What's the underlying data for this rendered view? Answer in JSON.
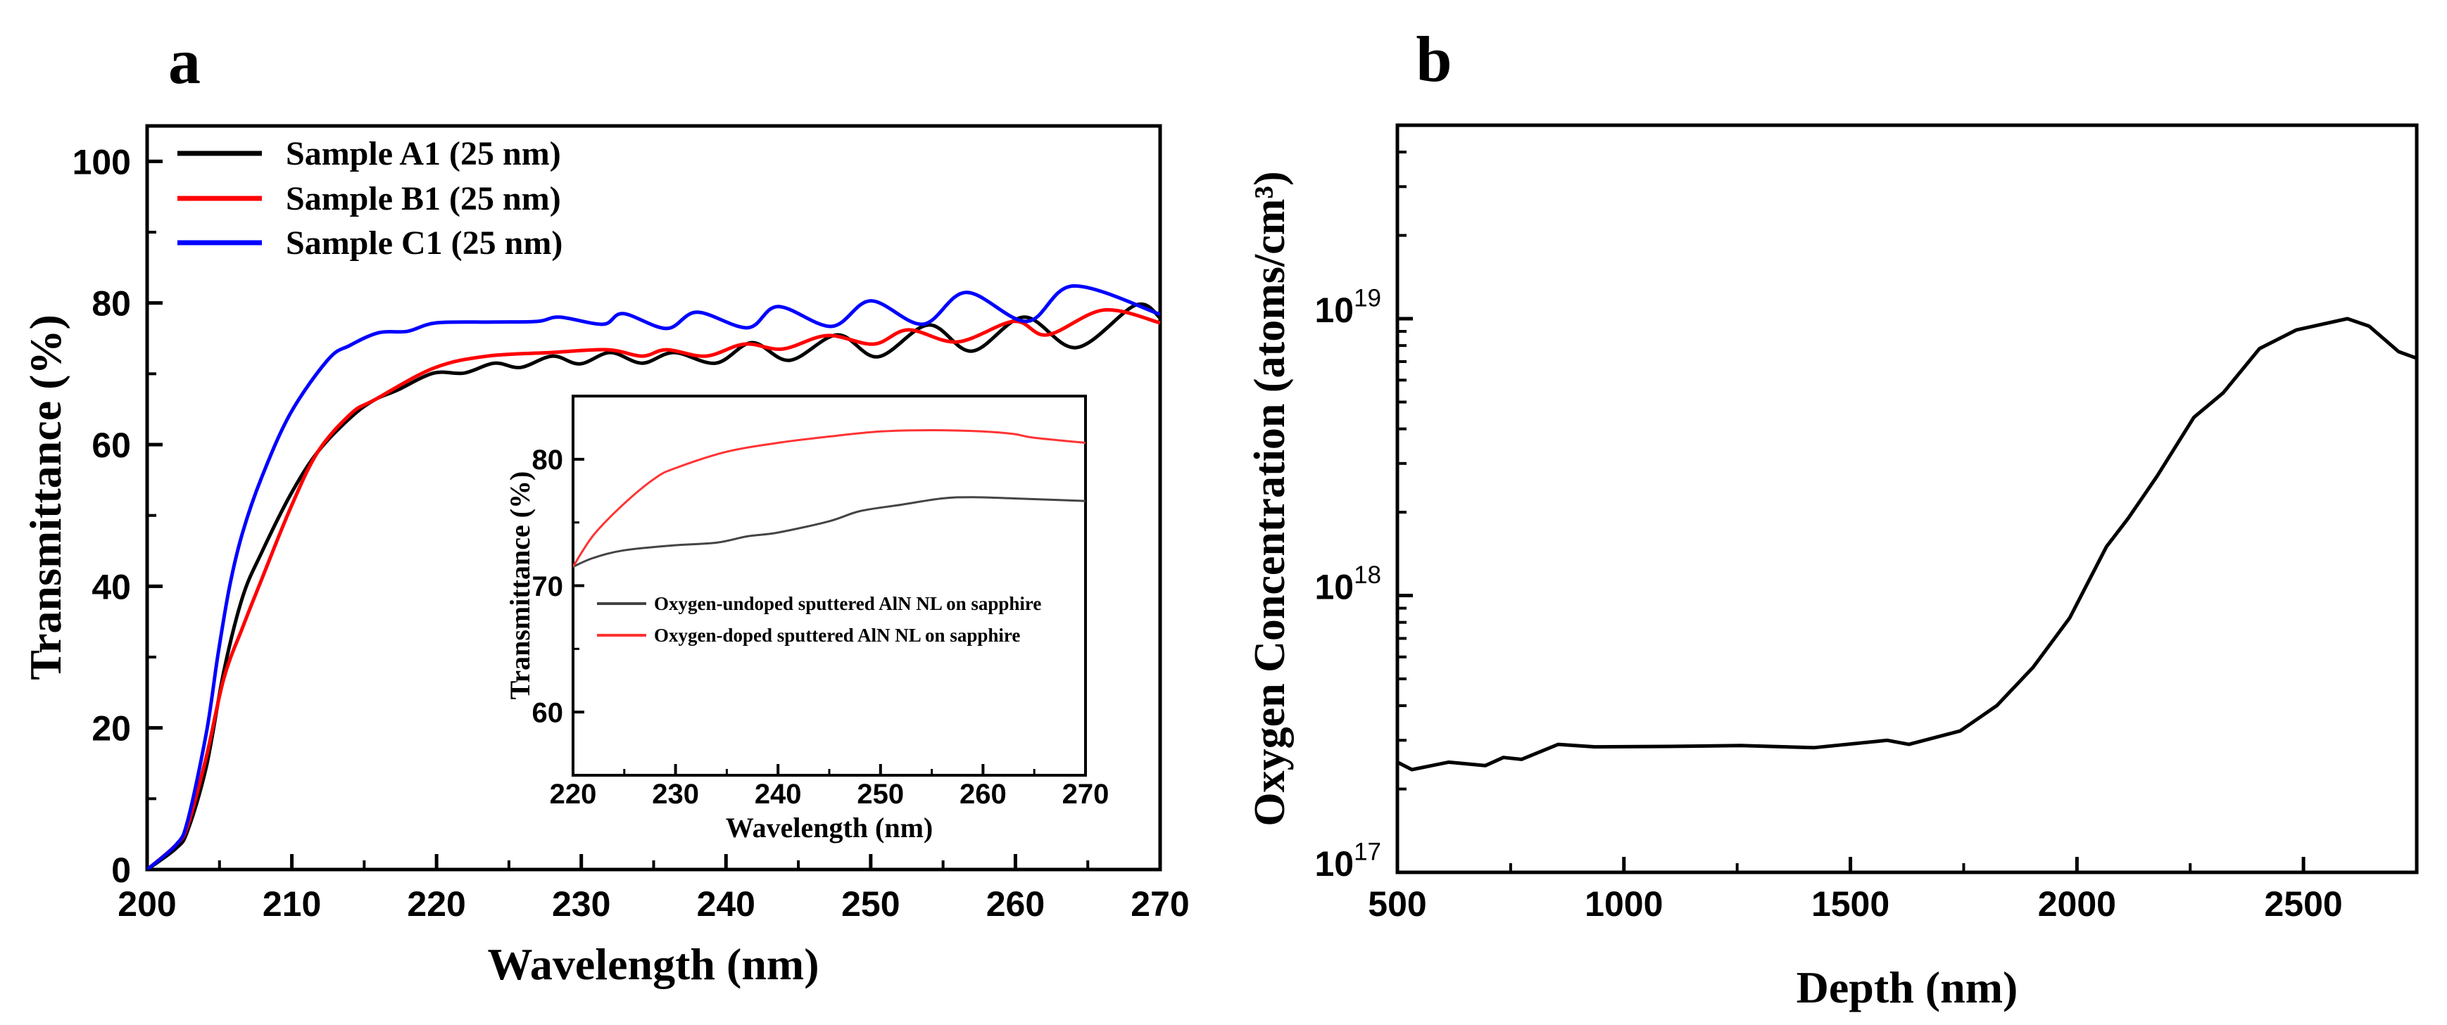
{
  "chart_data": [
    {
      "panel_label": "a",
      "type": "line",
      "title": "",
      "xlabel": "Wavelength (nm)",
      "ylabel": "Transmittance (%)",
      "xlim": [
        200,
        270
      ],
      "ylim": [
        0,
        105
      ],
      "xticks": [
        200,
        210,
        220,
        230,
        240,
        250,
        260,
        270
      ],
      "xminor": [
        205,
        215,
        225,
        235,
        245,
        255,
        265
      ],
      "yticks": [
        0,
        20,
        40,
        60,
        80,
        100
      ],
      "yminor": [
        10,
        30,
        50,
        70,
        90
      ],
      "grid": false,
      "legend": "top-left",
      "series": [
        {
          "name": "Sample A1 (25 nm)",
          "color": "#000000",
          "x": [
            200,
            202,
            202.8,
            204.1,
            205.3,
            206.6,
            207.9,
            209.9,
            211.8,
            214.1,
            215.7,
            217.3,
            219.8,
            221.9,
            224,
            225.8,
            228,
            229.9,
            232,
            234.2,
            236.4,
            239.3,
            241.8,
            244.4,
            247.7,
            250.5,
            254,
            257,
            260.6,
            264.2,
            268.3,
            270
          ],
          "y": [
            0,
            3,
            5.5,
            14.6,
            28,
            38.5,
            44.7,
            52.9,
            59,
            63.9,
            66.3,
            67.7,
            70.1,
            70.1,
            71.5,
            70.9,
            72.5,
            71.4,
            73.0,
            71.5,
            73.0,
            71.5,
            74.4,
            71.9,
            75.5,
            72.4,
            76.9,
            73.2,
            78.0,
            73.7,
            79.7,
            77.9
          ]
        },
        {
          "name": "Sample B1 (25 nm)",
          "color": "#ff0000",
          "x": [
            200,
            202,
            202.8,
            204.1,
            205.3,
            206.6,
            207.9,
            209.9,
            211.8,
            214.1,
            215.7,
            219.8,
            223.5,
            227.9,
            231.8,
            234.2,
            235.9,
            238.6,
            241.3,
            243.9,
            247,
            250.2,
            252.6,
            256,
            259.9,
            262.2,
            266.1,
            270
          ],
          "y": [
            0,
            3.5,
            6.2,
            16,
            27,
            34.2,
            40.9,
            51,
            59,
            64.4,
            66.3,
            70.8,
            72.5,
            73.0,
            73.4,
            72.5,
            73.4,
            72.5,
            74.2,
            73.5,
            75.4,
            74.2,
            76.2,
            74.5,
            77.4,
            75.5,
            79.0,
            77.2
          ]
        },
        {
          "name": "Sample C1 (25 nm)",
          "color": "#0000ff",
          "x": [
            200,
            202,
            202.8,
            204.1,
            204.9,
            205.7,
            206.6,
            207.9,
            209.9,
            212.5,
            214,
            216,
            218,
            220,
            224,
            227,
            228.5,
            231.5,
            232.9,
            235.9,
            238,
            241.5,
            243.6,
            247.3,
            250,
            253.6,
            256.6,
            260.8,
            264,
            270
          ],
          "y": [
            0,
            3.5,
            6.9,
            19.4,
            30.4,
            40,
            47.6,
            55.3,
            64.4,
            72,
            74,
            75.8,
            76,
            77.2,
            77.3,
            77.4,
            78.0,
            77.0,
            78.5,
            76.4,
            78.7,
            76.5,
            79.5,
            76.7,
            80.3,
            77.0,
            81.5,
            77.4,
            82.4,
            78.4
          ]
        }
      ]
    },
    {
      "panel_label": "",
      "type": "line",
      "title": "",
      "xlabel": "Wavelength (nm)",
      "ylabel": "Transmittance (%)",
      "xlim": [
        220,
        270
      ],
      "ylim": [
        55,
        85
      ],
      "xticks": [
        220,
        230,
        240,
        250,
        260,
        270
      ],
      "xminor": [
        225,
        235,
        245,
        255,
        265
      ],
      "yticks": [
        60,
        70,
        80
      ],
      "yminor": [
        65,
        75
      ],
      "grid": false,
      "legend": "center-left",
      "series": [
        {
          "name": "Oxygen-undoped sputtered AlN NL on sapphire",
          "color": "#444444",
          "x": [
            220,
            222,
            225,
            230,
            234,
            237,
            240,
            245,
            248,
            252,
            256,
            259,
            263,
            270
          ],
          "y": [
            71.5,
            72.2,
            72.8,
            73.2,
            73.4,
            73.9,
            74.2,
            75.1,
            75.9,
            76.4,
            76.9,
            77.0,
            76.9,
            76.7
          ]
        },
        {
          "name": "Oxygen-doped sputtered AlN NL on sapphire",
          "color": "#ff3333",
          "x": [
            220,
            222,
            225,
            228,
            230,
            235,
            240,
            245,
            250,
            255,
            260,
            263,
            265,
            270
          ],
          "y": [
            71.5,
            74,
            76.5,
            78.5,
            79.3,
            80.6,
            81.3,
            81.8,
            82.2,
            82.3,
            82.2,
            82.0,
            81.7,
            81.3
          ]
        }
      ]
    },
    {
      "panel_label": "b",
      "type": "line",
      "title": "",
      "xlabel": "Depth (nm)",
      "ylabel": "Oxygen Concentration (atoms/cm³)",
      "xlim": [
        500,
        2750
      ],
      "ylim": [
        1e+17,
        5e+19
      ],
      "yscale": "log",
      "xticks": [
        500,
        1000,
        1500,
        2000,
        2500
      ],
      "xminor": [
        750,
        1250,
        1750,
        2250
      ],
      "yticks": [
        1e+17,
        1e+18,
        1e+19
      ],
      "ytick_labels": [
        {
          "base": "10",
          "exp": "17"
        },
        {
          "base": "10",
          "exp": "18"
        },
        {
          "base": "10",
          "exp": "19"
        }
      ],
      "grid": false,
      "legend": "none",
      "series": [
        {
          "name": "Oxygen",
          "color": "#000000",
          "x": [
            500,
            532,
            613,
            694,
            734,
            774,
            855,
            936,
            1097,
            1258,
            1419,
            1581,
            1629,
            1742,
            1823,
            1903,
            1984,
            2065,
            2113,
            2177,
            2258,
            2323,
            2403,
            2484,
            2597,
            2645,
            2710,
            2750
          ],
          "y": [
            2.5e+17,
            2.35e+17,
            2.5e+17,
            2.43e+17,
            2.6e+17,
            2.56e+17,
            2.9e+17,
            2.84e+17,
            2.85e+17,
            2.87e+17,
            2.82e+17,
            3e+17,
            2.9e+17,
            3.24e+17,
            4e+17,
            5.5e+17,
            8.3e+17,
            1.5e+18,
            1.9e+18,
            2.7e+18,
            4.4e+18,
            5.4e+18,
            7.8e+18,
            9.1e+18,
            1e+19,
            9.4e+18,
            7.6e+18,
            7.2e+18
          ]
        }
      ]
    }
  ]
}
